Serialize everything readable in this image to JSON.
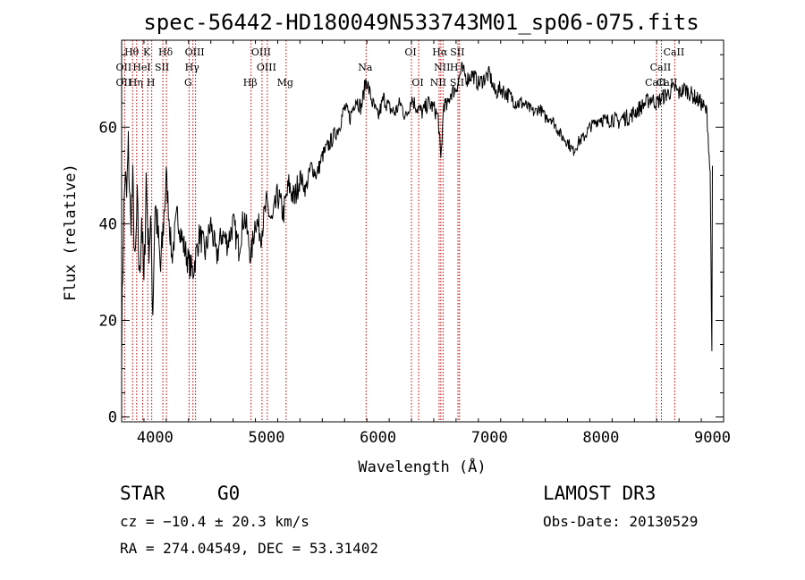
{
  "chart_data": {
    "type": "line",
    "title": "spec-56442-HD180049N533743M01_sp06-075.fits",
    "xlabel": "Wavelength (Å)",
    "ylabel": "Flux (relative)",
    "xlim": [
      3700,
      9100
    ],
    "ylim": [
      -1,
      78
    ],
    "xticks": [
      4000,
      5000,
      6000,
      7000,
      8000,
      9000
    ],
    "yticks": [
      0,
      20,
      40,
      60
    ],
    "series": [
      {
        "name": "spectrum",
        "color": "#000000",
        "x": [
          3700,
          3715,
          3730,
          3745,
          3760,
          3780,
          3800,
          3820,
          3840,
          3860,
          3880,
          3900,
          3920,
          3940,
          3960,
          3980,
          4000,
          4050,
          4100,
          4150,
          4200,
          4250,
          4300,
          4340,
          4400,
          4450,
          4500,
          4550,
          4600,
          4650,
          4700,
          4750,
          4800,
          4861,
          4900,
          4950,
          5000,
          5050,
          5100,
          5150,
          5200,
          5250,
          5300,
          5350,
          5400,
          5450,
          5500,
          5550,
          5600,
          5650,
          5700,
          5750,
          5800,
          5850,
          5893,
          5950,
          6000,
          6050,
          6100,
          6150,
          6200,
          6250,
          6300,
          6350,
          6400,
          6450,
          6500,
          6540,
          6563,
          6590,
          6620,
          6650,
          6700,
          6750,
          6800,
          6850,
          6900,
          6950,
          7000,
          7050,
          7100,
          7150,
          7200,
          7250,
          7300,
          7350,
          7400,
          7450,
          7500,
          7550,
          7600,
          7650,
          7700,
          7750,
          7800,
          7850,
          7900,
          7950,
          8000,
          8050,
          8100,
          8150,
          8200,
          8250,
          8300,
          8350,
          8400,
          8450,
          8498,
          8542,
          8600,
          8662,
          8700,
          8750,
          8800,
          8850,
          8900,
          8950,
          8980,
          8995,
          9000
        ],
        "y": [
          15,
          38,
          50,
          45,
          56,
          40,
          48,
          30,
          44,
          28,
          42,
          26,
          50,
          35,
          40,
          22,
          45,
          30,
          50,
          33,
          42,
          36,
          32,
          30,
          38,
          34,
          40,
          33,
          38,
          36,
          40,
          35,
          42,
          33,
          41,
          38,
          44,
          40,
          46,
          42,
          48,
          45,
          50,
          47,
          52,
          50,
          54,
          56,
          58,
          60,
          64,
          62,
          66,
          64,
          70,
          65,
          62,
          66,
          64,
          63,
          65,
          62,
          66,
          64,
          63,
          65,
          64,
          62,
          53,
          65,
          64,
          67,
          68,
          72,
          70,
          71,
          69,
          70,
          71,
          67,
          68,
          67,
          66,
          65,
          65,
          64,
          63,
          64,
          62,
          62,
          60,
          58,
          57,
          55,
          57,
          58,
          60,
          61,
          62,
          61,
          62,
          61,
          62,
          62,
          63,
          64,
          65,
          66,
          65,
          66,
          67,
          68,
          67,
          68,
          67,
          66,
          65,
          63,
          50,
          12,
          52
        ]
      }
    ],
    "lines": [
      {
        "label": "Hθ",
        "x": 3798,
        "row": 0
      },
      {
        "label": "K",
        "x": 3934,
        "row": 0
      },
      {
        "label": "Hδ",
        "x": 4102,
        "row": 0
      },
      {
        "label": "OIII",
        "x": 4363,
        "row": 0
      },
      {
        "label": "OIII",
        "x": 4959,
        "row": 0
      },
      {
        "label": "OI",
        "x": 6300,
        "row": 0
      },
      {
        "label": "Hα",
        "x": 6563,
        "row": 0
      },
      {
        "label": "SII",
        "x": 6720,
        "row": 0
      },
      {
        "label": "CaII",
        "x": 8662,
        "row": 0
      },
      {
        "label": "OII",
        "x": 3727,
        "row": 1
      },
      {
        "label": "HeI",
        "x": 3889,
        "row": 1
      },
      {
        "label": "SII",
        "x": 4070,
        "row": 1
      },
      {
        "label": "Hγ",
        "x": 4340,
        "row": 1
      },
      {
        "label": "OIII",
        "x": 5007,
        "row": 1
      },
      {
        "label": "Na",
        "x": 5893,
        "row": 1
      },
      {
        "label": "NII",
        "x": 6583,
        "row": 1
      },
      {
        "label": "H",
        "x": 6690,
        "row": 1
      },
      {
        "label": "CaII",
        "x": 8542,
        "row": 1
      },
      {
        "label": "OII",
        "x": 3727,
        "row": 2
      },
      {
        "label": "Hη",
        "x": 3835,
        "row": 2
      },
      {
        "label": "H",
        "x": 3970,
        "row": 2
      },
      {
        "label": "G",
        "x": 4305,
        "row": 2
      },
      {
        "label": "Hβ",
        "x": 4861,
        "row": 2
      },
      {
        "label": "Mg",
        "x": 5175,
        "row": 2
      },
      {
        "label": "OI",
        "x": 6364,
        "row": 2
      },
      {
        "label": "NII",
        "x": 6548,
        "row": 2
      },
      {
        "label": "SII",
        "x": 6717,
        "row": 2
      },
      {
        "label": "CaII",
        "x": 8498,
        "row": 2
      },
      {
        "label": "CaII",
        "x": 8600,
        "row": 2
      }
    ],
    "marker_lines_x": [
      3727,
      3798,
      3835,
      3889,
      3934,
      3970,
      4070,
      4102,
      4305,
      4340,
      4363,
      4861,
      4959,
      5007,
      5175,
      5893,
      6300,
      6364,
      6548,
      6563,
      6583,
      6717,
      6731,
      8498,
      8542,
      8662
    ],
    "marker_color": "#c00000"
  },
  "info": {
    "class": "STAR",
    "subclass": "G0",
    "survey": "LAMOST DR3",
    "redshift": "cz = −10.4 ± 20.3 km/s",
    "obs_date": "Obs-Date: 20130529",
    "coords": "RA = 274.04549, DEC =  53.31402"
  }
}
